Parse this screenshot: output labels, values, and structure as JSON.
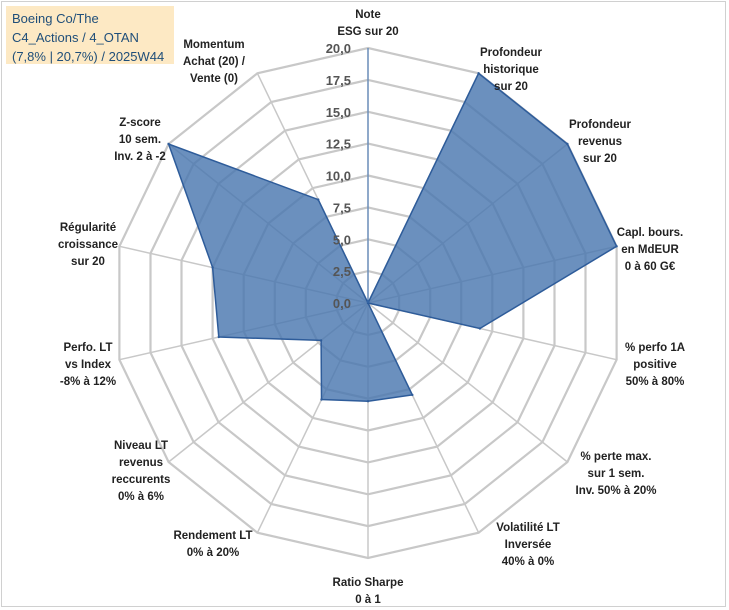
{
  "title_lines": [
    "Boeing Co/The",
    "C4_Actions / 4_OTAN",
    "(7,8% | 20,7%) / 2025W44"
  ],
  "colors": {
    "area_fill": "#4a78b0",
    "area_stroke": "#2e5c9a",
    "grid": "#c8c8c8",
    "title_bg": "#fde9c4",
    "title_text": "#1f4e79"
  },
  "chart_data": {
    "type": "radar",
    "rmin": 0,
    "rmax": 20,
    "tick_step": 2.5,
    "tick_labels": [
      "0,0",
      "2,5",
      "5,0",
      "7,5",
      "10,0",
      "12,5",
      "15,0",
      "17,5",
      "20,0"
    ],
    "axes": [
      {
        "label": [
          "Note",
          "ESG sur 20"
        ],
        "value": 0
      },
      {
        "label": [
          "Profondeur",
          "historique",
          "sur 20"
        ],
        "value": 20
      },
      {
        "label": [
          "Profondeur",
          "revenus",
          "sur 20"
        ],
        "value": 20
      },
      {
        "label": [
          "Capl. bours.",
          "en MdEUR",
          "0 à 60 G€"
        ],
        "value": 20
      },
      {
        "label": [
          "% perfo 1A",
          "positive",
          "50% à 80%"
        ],
        "value": 9
      },
      {
        "label": [
          "% perte max.",
          "sur 1 sem.",
          "Inv. 50% à 20%"
        ],
        "value": 0
      },
      {
        "label": [
          "Volatilité LT",
          "Inversée",
          "40% à 0%"
        ],
        "value": 8
      },
      {
        "label": [
          "Ratio Sharpe",
          "0 à 1"
        ],
        "value": 7.7
      },
      {
        "label": [
          "Rendement LT",
          "0% à 20%"
        ],
        "value": 8.4
      },
      {
        "label": [
          "Niveau LT",
          "revenus",
          "reccurents",
          "0% à 6%"
        ],
        "value": 4.7
      },
      {
        "label": [
          "Perfo. LT",
          "vs Index",
          "-8% à 12%"
        ],
        "value": 12
      },
      {
        "label": [
          "Régularité",
          "croissance",
          "sur 20"
        ],
        "value": 12.5
      },
      {
        "label": [
          "Z-score",
          "10 sem.",
          "Inv. 2 à -2"
        ],
        "value": 20
      },
      {
        "label": [
          "Momentum",
          "Achat (20) /",
          "Vente (0)"
        ],
        "value": 9
      }
    ]
  }
}
